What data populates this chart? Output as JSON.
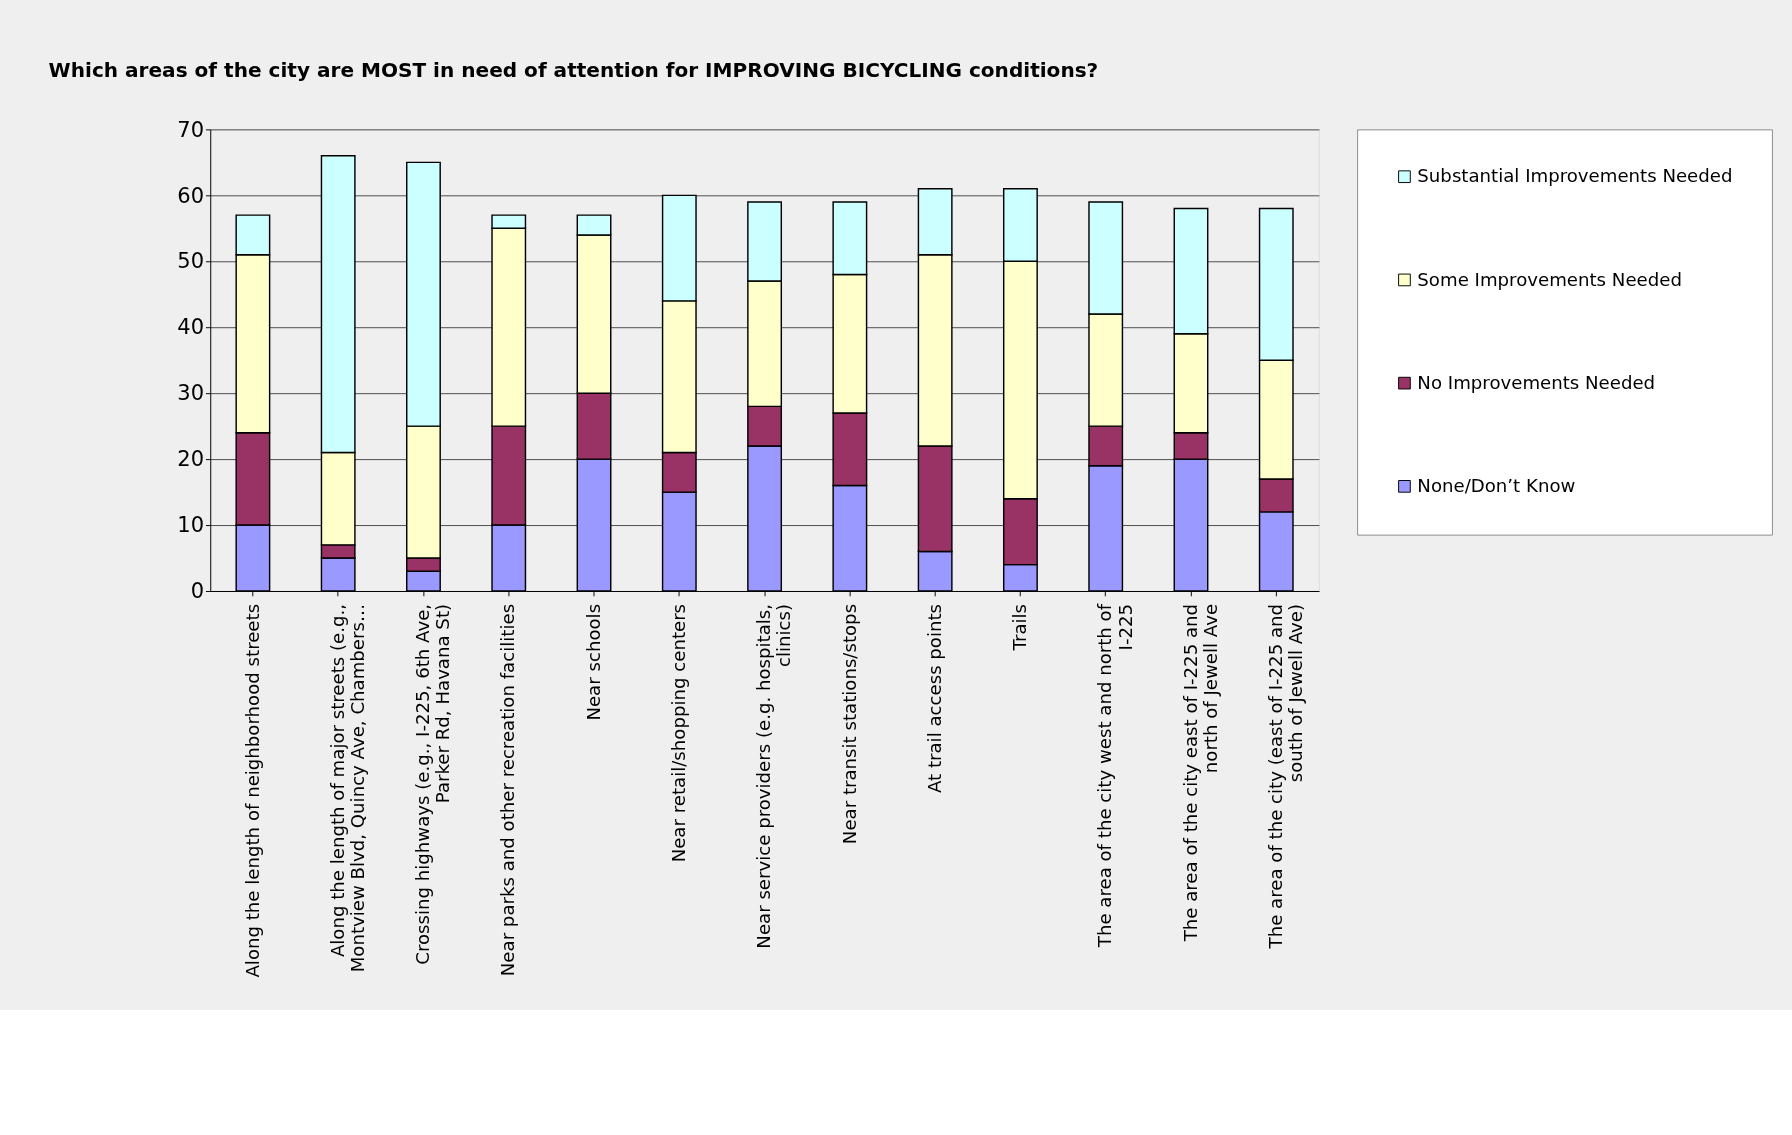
{
  "chart_data": {
    "type": "bar",
    "stacked": true,
    "title": "Which areas of the city are MOST in need of attention for IMPROVING BICYCLING conditions?",
    "categories": [
      "Along the length of neighborhood streets",
      "Along the length of major streets (e.g., Montview Blvd, Quincy Ave, Chambers…",
      "Crossing highways (e.g., I-225,  6th Ave, Parker Rd, Havana St)",
      "Near parks and other recreation facilities",
      "Near schools",
      "Near retail/shopping centers",
      "Near service providers (e.g. hospitals, clinics)",
      "Near transit stations/stops",
      "At trail access points",
      "Trails",
      "The area of the city west and north of I-225",
      "The area of the city east of I-225 and north of Jewell Ave",
      "The area of the city (east of I-225 and south of Jewell Ave)"
    ],
    "series": [
      {
        "name": "None/Don’t Know",
        "color": "#9999ff",
        "values": [
          10,
          5,
          3,
          10,
          20,
          15,
          22,
          16,
          6,
          4,
          19,
          20,
          12
        ]
      },
      {
        "name": "No Improvements Needed",
        "color": "#993366",
        "values": [
          14,
          2,
          2,
          15,
          10,
          6,
          6,
          11,
          16,
          10,
          6,
          4,
          5
        ]
      },
      {
        "name": "Some Improvements Needed",
        "color": "#ffffcc",
        "values": [
          27,
          14,
          20,
          30,
          24,
          23,
          19,
          21,
          29,
          36,
          17,
          15,
          18
        ]
      },
      {
        "name": "Substantial Improvements Needed",
        "color": "#ccffff",
        "values": [
          6,
          45,
          40,
          2,
          3,
          16,
          12,
          11,
          10,
          11,
          17,
          19,
          23
        ]
      }
    ],
    "ylim": [
      0,
      70
    ],
    "yticks": [
      0,
      10,
      20,
      30,
      40,
      50,
      60,
      70
    ],
    "grid": "y",
    "legend": "right"
  }
}
